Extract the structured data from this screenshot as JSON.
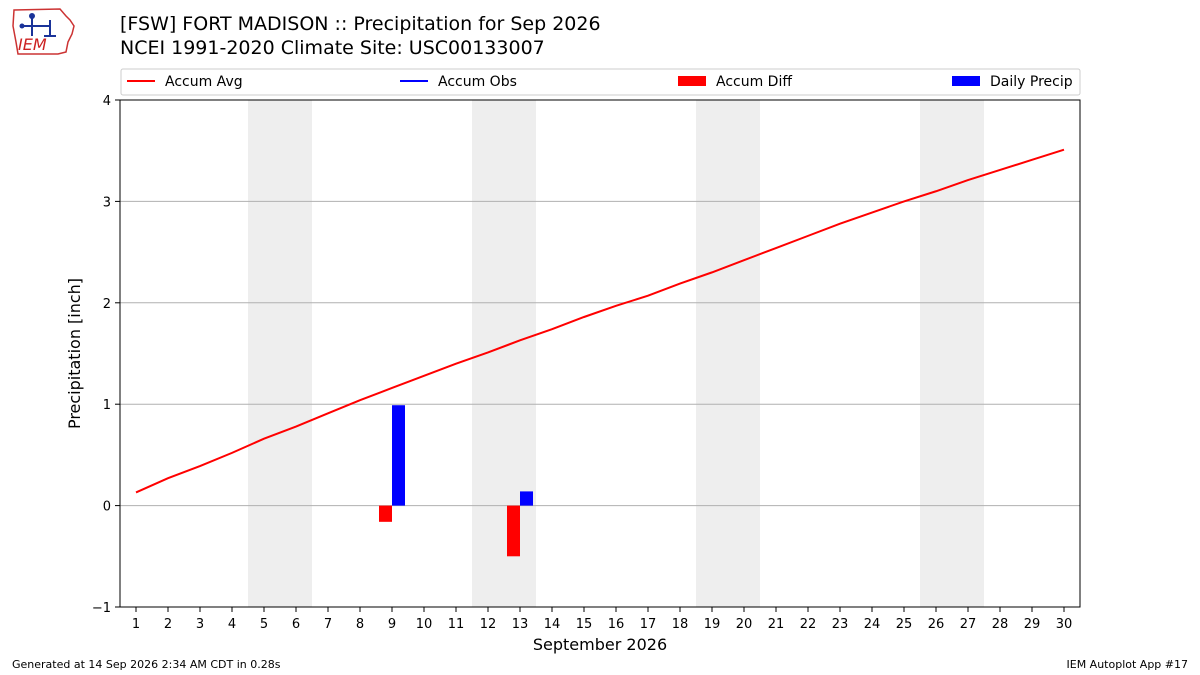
{
  "header": {
    "title": "[FSW] FORT MADISON :: Precipitation for Sep 2026",
    "subtitle": "NCEI 1991-2020 Climate Site: USC00133007"
  },
  "logo": {
    "text": "IEM"
  },
  "footer": {
    "generated": "Generated at 14 Sep 2026 2:34 AM CDT in 0.28s",
    "app": "IEM Autoplot App #17"
  },
  "colors": {
    "avg": "#ff0000",
    "obs": "#0000ff",
    "diff": "#ff0000",
    "daily": "#0000ff",
    "weekend": "#eeeeee"
  },
  "chart_data": {
    "type": "bar",
    "xlabel": "September 2026",
    "ylabel": "Precipitation [inch]",
    "xlim": [
      0.5,
      30.5
    ],
    "ylim": [
      -1,
      4
    ],
    "yticks": [
      -1,
      0,
      1,
      2,
      3,
      4
    ],
    "ytick_labels": [
      "−1",
      "0",
      "1",
      "2",
      "3",
      "4"
    ],
    "x": [
      1,
      2,
      3,
      4,
      5,
      6,
      7,
      8,
      9,
      10,
      11,
      12,
      13,
      14,
      15,
      16,
      17,
      18,
      19,
      20,
      21,
      22,
      23,
      24,
      25,
      26,
      27,
      28,
      29,
      30
    ],
    "weekend_spans": [
      [
        4.5,
        6.5
      ],
      [
        11.5,
        13.5
      ],
      [
        18.5,
        20.5
      ],
      [
        25.5,
        27.5
      ]
    ],
    "grid": "horizontal",
    "legend": {
      "placement": "top",
      "entries": [
        {
          "label": "Accum Avg",
          "kind": "line",
          "color": "#ff0000"
        },
        {
          "label": "Accum Obs",
          "kind": "line",
          "color": "#0000ff"
        },
        {
          "label": "Accum Diff",
          "kind": "bar",
          "color": "#ff0000"
        },
        {
          "label": "Daily Precip",
          "kind": "bar",
          "color": "#0000ff"
        }
      ]
    },
    "series": [
      {
        "name": "Accum Avg",
        "kind": "line",
        "color": "#ff0000",
        "values": [
          0.13,
          0.27,
          0.39,
          0.52,
          0.66,
          0.78,
          0.91,
          1.04,
          1.16,
          1.28,
          1.4,
          1.51,
          1.63,
          1.74,
          1.86,
          1.97,
          2.07,
          2.19,
          2.3,
          2.42,
          2.54,
          2.66,
          2.78,
          2.89,
          3.0,
          3.1,
          3.21,
          3.31,
          3.41,
          3.51
        ]
      },
      {
        "name": "Accum Diff",
        "kind": "bar",
        "color": "#ff0000",
        "points": [
          {
            "x": 9,
            "y": -0.16
          },
          {
            "x": 13,
            "y": -0.5
          }
        ]
      },
      {
        "name": "Daily Precip",
        "kind": "bar",
        "color": "#0000ff",
        "points": [
          {
            "x": 9,
            "y": 0.99
          },
          {
            "x": 13,
            "y": 0.14
          }
        ]
      }
    ]
  }
}
